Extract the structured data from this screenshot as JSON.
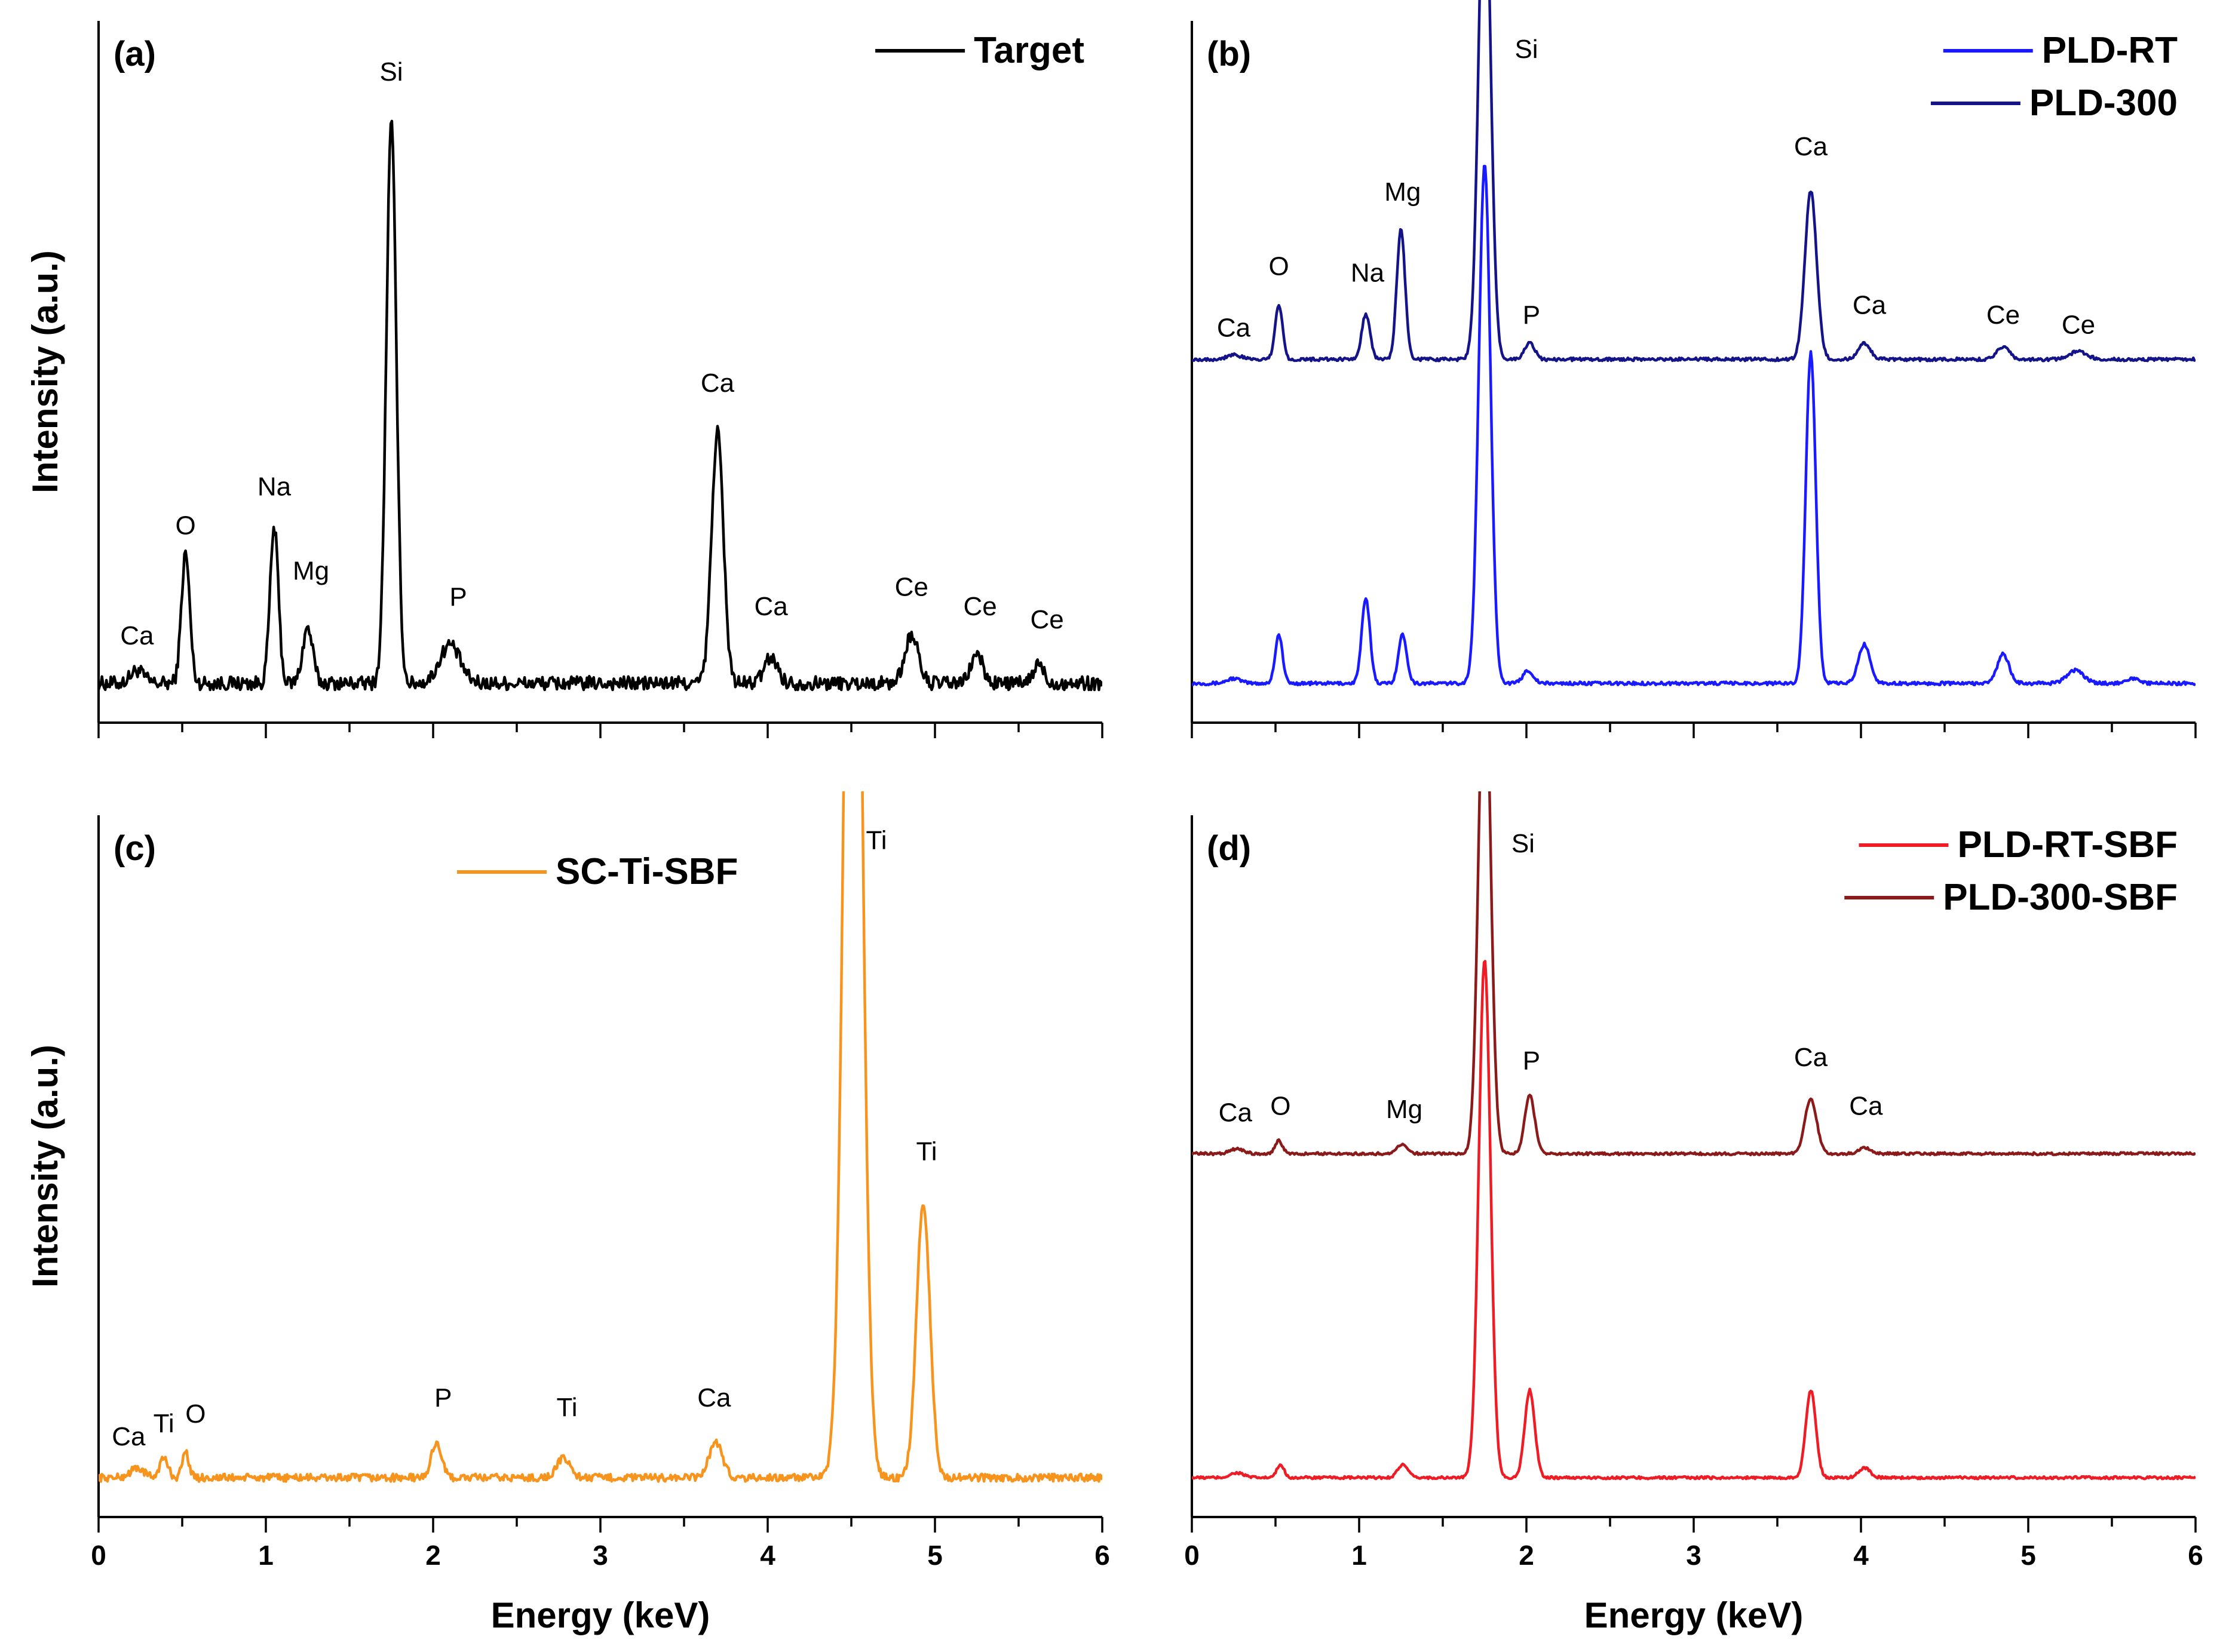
{
  "chart_data": [
    {
      "panel": "(a)",
      "type": "line",
      "xlabel": "",
      "ylabel": "Intensity (a.u.)",
      "xlim": [
        0,
        6
      ],
      "xticks": [],
      "series": [
        {
          "name": "Target",
          "color": "#000000",
          "baseline": 2,
          "noise": 2.2,
          "peaks": [
            [
              0.23,
              4,
              0.04
            ],
            [
              0.52,
              40,
              0.025
            ],
            [
              1.05,
              48,
              0.025
            ],
            [
              1.25,
              17,
              0.03
            ],
            [
              1.75,
              173,
              0.03
            ],
            [
              2.1,
              12,
              0.06
            ],
            [
              3.7,
              78,
              0.035
            ],
            [
              4.02,
              8,
              0.04
            ],
            [
              4.86,
              15,
              0.04
            ],
            [
              5.25,
              9,
              0.035
            ],
            [
              5.62,
              6,
              0.03
            ]
          ],
          "ylim": [
            0,
            200
          ],
          "offset": 0
        }
      ],
      "peak_labels": [
        {
          "text": "Ca",
          "x": 0.23,
          "y": 14
        },
        {
          "text": "O",
          "x": 0.52,
          "y": 48
        },
        {
          "text": "Na",
          "x": 1.05,
          "y": 60
        },
        {
          "text": "Mg",
          "x": 1.27,
          "y": 34
        },
        {
          "text": "Si",
          "x": 1.75,
          "y": 188
        },
        {
          "text": "P",
          "x": 2.15,
          "y": 26
        },
        {
          "text": "Ca",
          "x": 3.7,
          "y": 92
        },
        {
          "text": "Ca",
          "x": 4.02,
          "y": 23
        },
        {
          "text": "Ce",
          "x": 4.86,
          "y": 29
        },
        {
          "text": "Ce",
          "x": 5.27,
          "y": 23
        },
        {
          "text": "Ce",
          "x": 5.67,
          "y": 19
        }
      ]
    },
    {
      "panel": "(b)",
      "type": "line",
      "xlabel": "",
      "ylabel": "",
      "xlim": [
        0,
        6
      ],
      "xticks": [],
      "series": [
        {
          "name": "PLD-RT",
          "color": "#1a1aff",
          "baseline": 2,
          "noise": 0.5,
          "peaks": [
            [
              0.25,
              1.5,
              0.04
            ],
            [
              0.52,
              15,
              0.022
            ],
            [
              1.04,
              26,
              0.025
            ],
            [
              1.26,
              15,
              0.025
            ],
            [
              1.75,
              160,
              0.035
            ],
            [
              2.01,
              4,
              0.03
            ],
            [
              3.7,
              102,
              0.03
            ],
            [
              4.02,
              12,
              0.035
            ],
            [
              4.85,
              9,
              0.035
            ],
            [
              5.28,
              4,
              0.05
            ],
            [
              5.62,
              1.5,
              0.04
            ]
          ],
          "ylim": [
            0,
            200
          ],
          "offset": 0
        },
        {
          "name": "PLD-300",
          "color": "#141488",
          "baseline": 2,
          "noise": 0.5,
          "peaks": [
            [
              0.25,
              1.5,
              0.04
            ],
            [
              0.52,
              17,
              0.022
            ],
            [
              1.04,
              14,
              0.025
            ],
            [
              1.25,
              40,
              0.025
            ],
            [
              1.75,
              160,
              0.035
            ],
            [
              2.02,
              5,
              0.03
            ],
            [
              3.7,
              52,
              0.035
            ],
            [
              4.02,
              5,
              0.035
            ],
            [
              4.85,
              4,
              0.035
            ],
            [
              5.3,
              2.5,
              0.05
            ]
          ],
          "ylim": [
            0,
            200
          ],
          "offset": 100
        }
      ],
      "peak_labels": [
        {
          "text": "Ca",
          "x": 0.25,
          "y": 109
        },
        {
          "text": "O",
          "x": 0.52,
          "y": 128
        },
        {
          "text": "Na",
          "x": 1.05,
          "y": 126
        },
        {
          "text": "Mg",
          "x": 1.26,
          "y": 151
        },
        {
          "text": "Si",
          "x": 2.0,
          "y": 195
        },
        {
          "text": "P",
          "x": 2.03,
          "y": 113
        },
        {
          "text": "Ca",
          "x": 3.7,
          "y": 165
        },
        {
          "text": "Ca",
          "x": 4.05,
          "y": 116
        },
        {
          "text": "Ce",
          "x": 4.85,
          "y": 113
        },
        {
          "text": "Ce",
          "x": 5.3,
          "y": 110
        }
      ]
    },
    {
      "panel": "(c)",
      "type": "line",
      "xlabel": "Energy (keV)",
      "ylabel": "Intensity (a.u.)",
      "xlim": [
        0,
        6
      ],
      "xticks": [
        "0",
        "1",
        "2",
        "3",
        "4",
        "5",
        "6"
      ],
      "series": [
        {
          "name": "SC-Ti-SBF",
          "color": "#f7941d",
          "baseline": 2,
          "noise": 1.2,
          "peaks": [
            [
              0.23,
              3,
              0.04
            ],
            [
              0.39,
              6,
              0.025
            ],
            [
              0.52,
              8,
              0.02
            ],
            [
              2.02,
              11,
              0.03
            ],
            [
              2.78,
              6,
              0.04
            ],
            [
              3.69,
              11,
              0.04
            ],
            [
              4.51,
              400,
              0.05
            ],
            [
              4.93,
              85,
              0.04
            ]
          ],
          "ylim": [
            0,
            200
          ],
          "offset": 0
        }
      ],
      "peak_labels": [
        {
          "text": "Ca",
          "x": 0.18,
          "y": 12
        },
        {
          "text": "Ti",
          "x": 0.39,
          "y": 16
        },
        {
          "text": "O",
          "x": 0.58,
          "y": 19
        },
        {
          "text": "P",
          "x": 2.06,
          "y": 24
        },
        {
          "text": "Ti",
          "x": 2.8,
          "y": 21
        },
        {
          "text": "Ca",
          "x": 3.68,
          "y": 24
        },
        {
          "text": "Ti",
          "x": 4.65,
          "y": 196
        },
        {
          "text": "Ti",
          "x": 4.95,
          "y": 100
        }
      ]
    },
    {
      "panel": "(d)",
      "type": "line",
      "xlabel": "Energy (keV)",
      "ylabel": "",
      "xlim": [
        0,
        6
      ],
      "xticks": [
        "0",
        "1",
        "2",
        "3",
        "4",
        "5",
        "6"
      ],
      "series": [
        {
          "name": "PLD-RT-SBF",
          "color": "#ee1c24",
          "baseline": 2,
          "noise": 0.4,
          "peaks": [
            [
              0.27,
              1.5,
              0.04
            ],
            [
              0.53,
              4,
              0.022
            ],
            [
              1.26,
              4,
              0.03
            ],
            [
              1.75,
              160,
              0.035
            ],
            [
              2.02,
              27,
              0.03
            ],
            [
              3.7,
              27,
              0.03
            ],
            [
              4.02,
              3,
              0.035
            ]
          ],
          "ylim": [
            0,
            200
          ],
          "offset": 0
        },
        {
          "name": "PLD-300-SBF",
          "color": "#8b1a1a",
          "baseline": 2,
          "noise": 0.4,
          "peaks": [
            [
              0.27,
              1.5,
              0.04
            ],
            [
              0.52,
              4,
              0.022
            ],
            [
              1.26,
              3,
              0.03
            ],
            [
              1.75,
              160,
              0.035
            ],
            [
              2.02,
              18,
              0.03
            ],
            [
              3.7,
              17,
              0.035
            ],
            [
              4.02,
              2,
              0.035
            ]
          ],
          "ylim": [
            0,
            200
          ],
          "offset": 100
        }
      ],
      "peak_labels": [
        {
          "text": "Ca",
          "x": 0.26,
          "y": 112
        },
        {
          "text": "O",
          "x": 0.53,
          "y": 114
        },
        {
          "text": "Si",
          "x": 1.98,
          "y": 195
        },
        {
          "text": "Mg",
          "x": 1.27,
          "y": 113
        },
        {
          "text": "P",
          "x": 2.03,
          "y": 128
        },
        {
          "text": "Ca",
          "x": 3.7,
          "y": 129
        },
        {
          "text": "Ca",
          "x": 4.03,
          "y": 114
        }
      ]
    }
  ]
}
